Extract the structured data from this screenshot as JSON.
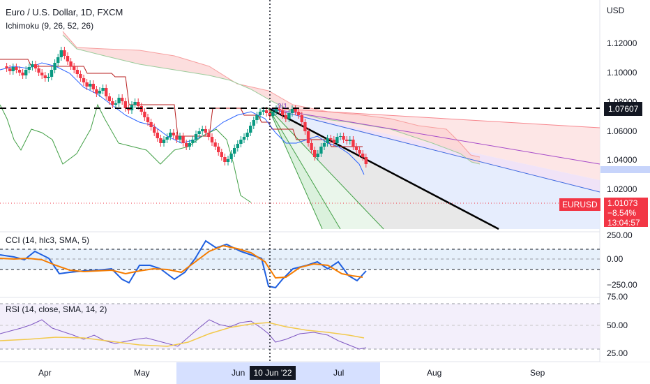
{
  "symbol_title": "Euro / U.S. Dollar, 1D, FXCM",
  "indicators": {
    "ichimoku": "Ichimoku (9, 26, 52, 26)",
    "cci": "CCI (14, hlc3, SMA, 5)",
    "rsi": "RSI (14, close, SMA, 14, 2)"
  },
  "price_axis": {
    "currency": "USD",
    "ticks": [
      "1.12000",
      "1.10000",
      "1.08000",
      "1.06000",
      "1.04000",
      "1.02000"
    ],
    "highlight_value": "1.07607",
    "symbol_tag": "EURUSD",
    "last_price": "1.01073",
    "change": "−8.54%",
    "countdown": "13:04:57"
  },
  "cci_axis": {
    "ticks": [
      "250.00",
      "0.00",
      "−250.00"
    ]
  },
  "rsi_axis": {
    "ticks": [
      "75.00",
      "50.00",
      "25.00"
    ]
  },
  "time_axis": {
    "ticks": [
      "Apr",
      "May",
      "Jun",
      "Jul",
      "Aug",
      "Sep"
    ],
    "crosshair_date": "10 Jun '22"
  },
  "fib_label": "0/1",
  "colors": {
    "bull": "#089981",
    "bear": "#f23645",
    "kijun": "#b71c1c",
    "tenkan": "#2962ff",
    "lagging": "#43a047",
    "cci_line": "#1e5fe0",
    "cci_ma": "#f57c00",
    "rsi_line": "#7e57c2",
    "rsi_ma": "#f2c94c"
  }
}
